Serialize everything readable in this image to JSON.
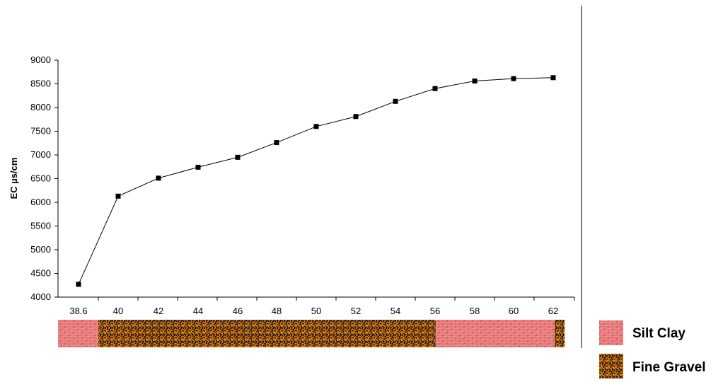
{
  "chart_data": {
    "type": "line",
    "xlabel": "",
    "ylabel": "EC µs/cm",
    "ylim": [
      4000,
      9000
    ],
    "y_ticks": [
      4000,
      4500,
      5000,
      5500,
      6000,
      6500,
      7000,
      7500,
      8000,
      8500,
      9000
    ],
    "categories": [
      "38.6",
      "40",
      "42",
      "44",
      "46",
      "48",
      "50",
      "52",
      "54",
      "56",
      "58",
      "60",
      "62"
    ],
    "series": [
      {
        "name": "",
        "values": [
          4270,
          6130,
          6510,
          6740,
          6950,
          7260,
          7600,
          7810,
          8130,
          8400,
          8560,
          8610,
          8630
        ]
      }
    ],
    "grid": false,
    "legend_placement": "right",
    "lithology": {
      "colors": {
        "Silt Clay": "#f28a8a",
        "Fine Gravel": "#e07a0c"
      },
      "legend": [
        {
          "name": "Silt Clay",
          "color": "#f28a8a"
        },
        {
          "name": "Fine Gravel",
          "color": "#e07a0c"
        }
      ],
      "segments": [
        {
          "type": "Silt Clay",
          "from": "38.6",
          "to": "40"
        },
        {
          "type": "Fine Gravel",
          "from": "40",
          "to": "57"
        },
        {
          "type": "Silt Clay",
          "from": "57",
          "to": "63"
        },
        {
          "type": "Fine Gravel",
          "from": "63",
          "to": "63.5"
        }
      ]
    },
    "line_color": "#000000",
    "marker": "square"
  }
}
